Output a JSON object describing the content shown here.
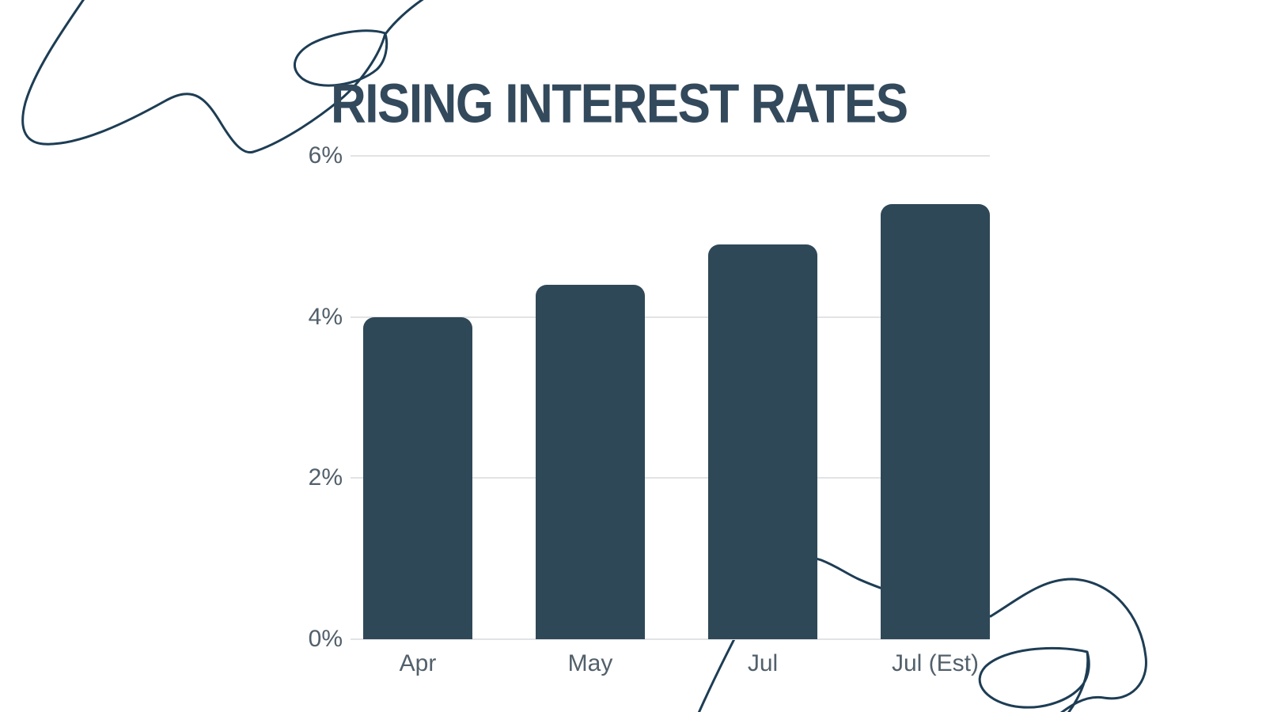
{
  "chart_data": {
    "type": "bar",
    "title": "RISING INTEREST RATES",
    "categories": [
      "Apr",
      "May",
      "Jul",
      "Jul (Est)"
    ],
    "values": [
      4.0,
      4.4,
      4.9,
      5.4
    ],
    "xlabel": "",
    "ylabel": "",
    "ylim": [
      0,
      6
    ],
    "yticks": [
      0,
      2,
      4,
      6
    ],
    "ytick_labels": [
      "0%",
      "2%",
      "4%",
      "6%"
    ],
    "grid": true,
    "legend": false,
    "bar_corner_radius": "rounded-top"
  },
  "colors": {
    "background": "#ffffff",
    "bar": "#2f4858",
    "title": "#33495c",
    "tick_label": "#52606b",
    "gridline": "#e2e3e5",
    "scribble": "#1d3d54"
  },
  "decorations": {
    "top_left": "single-line-scribble-doodle",
    "bottom_right": "single-line-scribble-doodle"
  }
}
